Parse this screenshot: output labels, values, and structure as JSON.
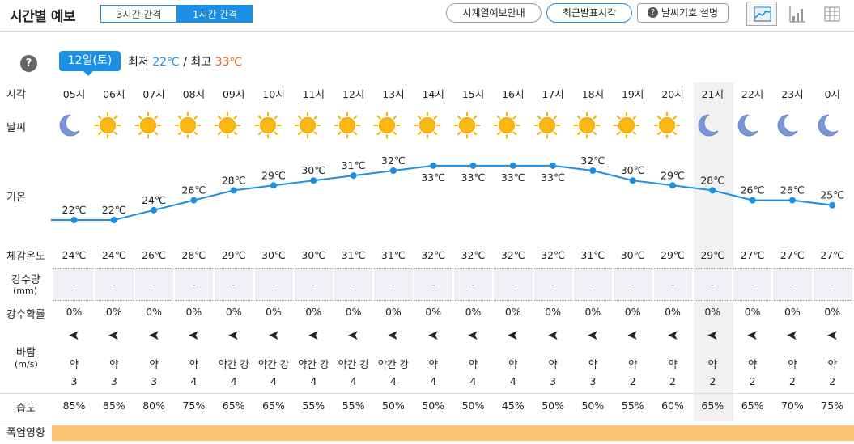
{
  "header": {
    "title": "시간별 예보",
    "interval_tabs": [
      "3시간 간격",
      "1시간 간격"
    ],
    "selected_interval": "1시간 간격",
    "buttons": {
      "guide": "시계열예보안내",
      "recent": "최근발표시각",
      "symbol": "날씨기호 설명"
    }
  },
  "date": {
    "label": "12일(토)",
    "min_label": "최저",
    "min_value": "22℃",
    "separator": "/",
    "max_label": "최고",
    "max_value": "33℃"
  },
  "row_labels": {
    "time": "시각",
    "weather": "날씨",
    "temp": "기온",
    "feels": "체감온도",
    "rain_1": "강수량",
    "rain_2": "(mm)",
    "prob": "강수확률",
    "wind_1": "바람",
    "wind_2": "(m/s)",
    "humidity": "습도",
    "heat": "폭염영향"
  },
  "colors": {
    "accent": "#1a8fe3",
    "max_temp": "#e06a1b",
    "heat_band": "#fbc36f"
  },
  "highlight_hour": "21시",
  "hours": [
    {
      "time": "05시",
      "icon": "moon",
      "temp": 22,
      "temp_label": "22℃",
      "feels": "24℃",
      "rain": "-",
      "prob": "0%",
      "wind_strength": "약",
      "wind_speed": "3",
      "humidity": "85%"
    },
    {
      "time": "06시",
      "icon": "sun",
      "temp": 22,
      "temp_label": "22℃",
      "feels": "24℃",
      "rain": "-",
      "prob": "0%",
      "wind_strength": "약",
      "wind_speed": "3",
      "humidity": "85%"
    },
    {
      "time": "07시",
      "icon": "sun",
      "temp": 24,
      "temp_label": "24℃",
      "feels": "26℃",
      "rain": "-",
      "prob": "0%",
      "wind_strength": "약",
      "wind_speed": "3",
      "humidity": "80%"
    },
    {
      "time": "08시",
      "icon": "sun",
      "temp": 26,
      "temp_label": "26℃",
      "feels": "28℃",
      "rain": "-",
      "prob": "0%",
      "wind_strength": "약",
      "wind_speed": "4",
      "humidity": "75%"
    },
    {
      "time": "09시",
      "icon": "sun",
      "temp": 28,
      "temp_label": "28℃",
      "feels": "29℃",
      "rain": "-",
      "prob": "0%",
      "wind_strength": "약간 강",
      "wind_speed": "4",
      "humidity": "65%"
    },
    {
      "time": "10시",
      "icon": "sun",
      "temp": 29,
      "temp_label": "29℃",
      "feels": "30℃",
      "rain": "-",
      "prob": "0%",
      "wind_strength": "약간 강",
      "wind_speed": "4",
      "humidity": "65%"
    },
    {
      "time": "11시",
      "icon": "sun",
      "temp": 30,
      "temp_label": "30℃",
      "feels": "30℃",
      "rain": "-",
      "prob": "0%",
      "wind_strength": "약간 강",
      "wind_speed": "4",
      "humidity": "55%"
    },
    {
      "time": "12시",
      "icon": "sun",
      "temp": 31,
      "temp_label": "31℃",
      "feels": "31℃",
      "rain": "-",
      "prob": "0%",
      "wind_strength": "약간 강",
      "wind_speed": "4",
      "humidity": "55%"
    },
    {
      "time": "13시",
      "icon": "sun",
      "temp": 32,
      "temp_label": "32℃",
      "feels": "31℃",
      "rain": "-",
      "prob": "0%",
      "wind_strength": "약간 강",
      "wind_speed": "4",
      "humidity": "50%"
    },
    {
      "time": "14시",
      "icon": "sun",
      "temp": 33,
      "temp_label": "33℃",
      "feels": "32℃",
      "rain": "-",
      "prob": "0%",
      "wind_strength": "약",
      "wind_speed": "4",
      "humidity": "50%"
    },
    {
      "time": "15시",
      "icon": "sun",
      "temp": 33,
      "temp_label": "33℃",
      "feels": "32℃",
      "rain": "-",
      "prob": "0%",
      "wind_strength": "약",
      "wind_speed": "4",
      "humidity": "50%"
    },
    {
      "time": "16시",
      "icon": "sun",
      "temp": 33,
      "temp_label": "33℃",
      "feels": "32℃",
      "rain": "-",
      "prob": "0%",
      "wind_strength": "약",
      "wind_speed": "4",
      "humidity": "45%"
    },
    {
      "time": "17시",
      "icon": "sun",
      "temp": 33,
      "temp_label": "33℃",
      "feels": "32℃",
      "rain": "-",
      "prob": "0%",
      "wind_strength": "약",
      "wind_speed": "3",
      "humidity": "50%"
    },
    {
      "time": "18시",
      "icon": "sun",
      "temp": 32,
      "temp_label": "32℃",
      "feels": "31℃",
      "rain": "-",
      "prob": "0%",
      "wind_strength": "약",
      "wind_speed": "3",
      "humidity": "50%"
    },
    {
      "time": "19시",
      "icon": "sun",
      "temp": 30,
      "temp_label": "30℃",
      "feels": "30℃",
      "rain": "-",
      "prob": "0%",
      "wind_strength": "약",
      "wind_speed": "2",
      "humidity": "55%"
    },
    {
      "time": "20시",
      "icon": "sun",
      "temp": 29,
      "temp_label": "29℃",
      "feels": "29℃",
      "rain": "-",
      "prob": "0%",
      "wind_strength": "약",
      "wind_speed": "2",
      "humidity": "60%"
    },
    {
      "time": "21시",
      "icon": "moon",
      "temp": 28,
      "temp_label": "28℃",
      "feels": "29℃",
      "rain": "-",
      "prob": "0%",
      "wind_strength": "약",
      "wind_speed": "2",
      "humidity": "65%"
    },
    {
      "time": "22시",
      "icon": "moon",
      "temp": 26,
      "temp_label": "26℃",
      "feels": "27℃",
      "rain": "-",
      "prob": "0%",
      "wind_strength": "약",
      "wind_speed": "2",
      "humidity": "65%"
    },
    {
      "time": "23시",
      "icon": "moon",
      "temp": 26,
      "temp_label": "26℃",
      "feels": "27℃",
      "rain": "-",
      "prob": "0%",
      "wind_strength": "약",
      "wind_speed": "2",
      "humidity": "70%"
    },
    {
      "time": "0시",
      "icon": "moon",
      "temp": 25,
      "temp_label": "25℃",
      "feels": "27℃",
      "rain": "-",
      "prob": "0%",
      "wind_strength": "약",
      "wind_speed": "2",
      "humidity": "75%"
    }
  ]
}
